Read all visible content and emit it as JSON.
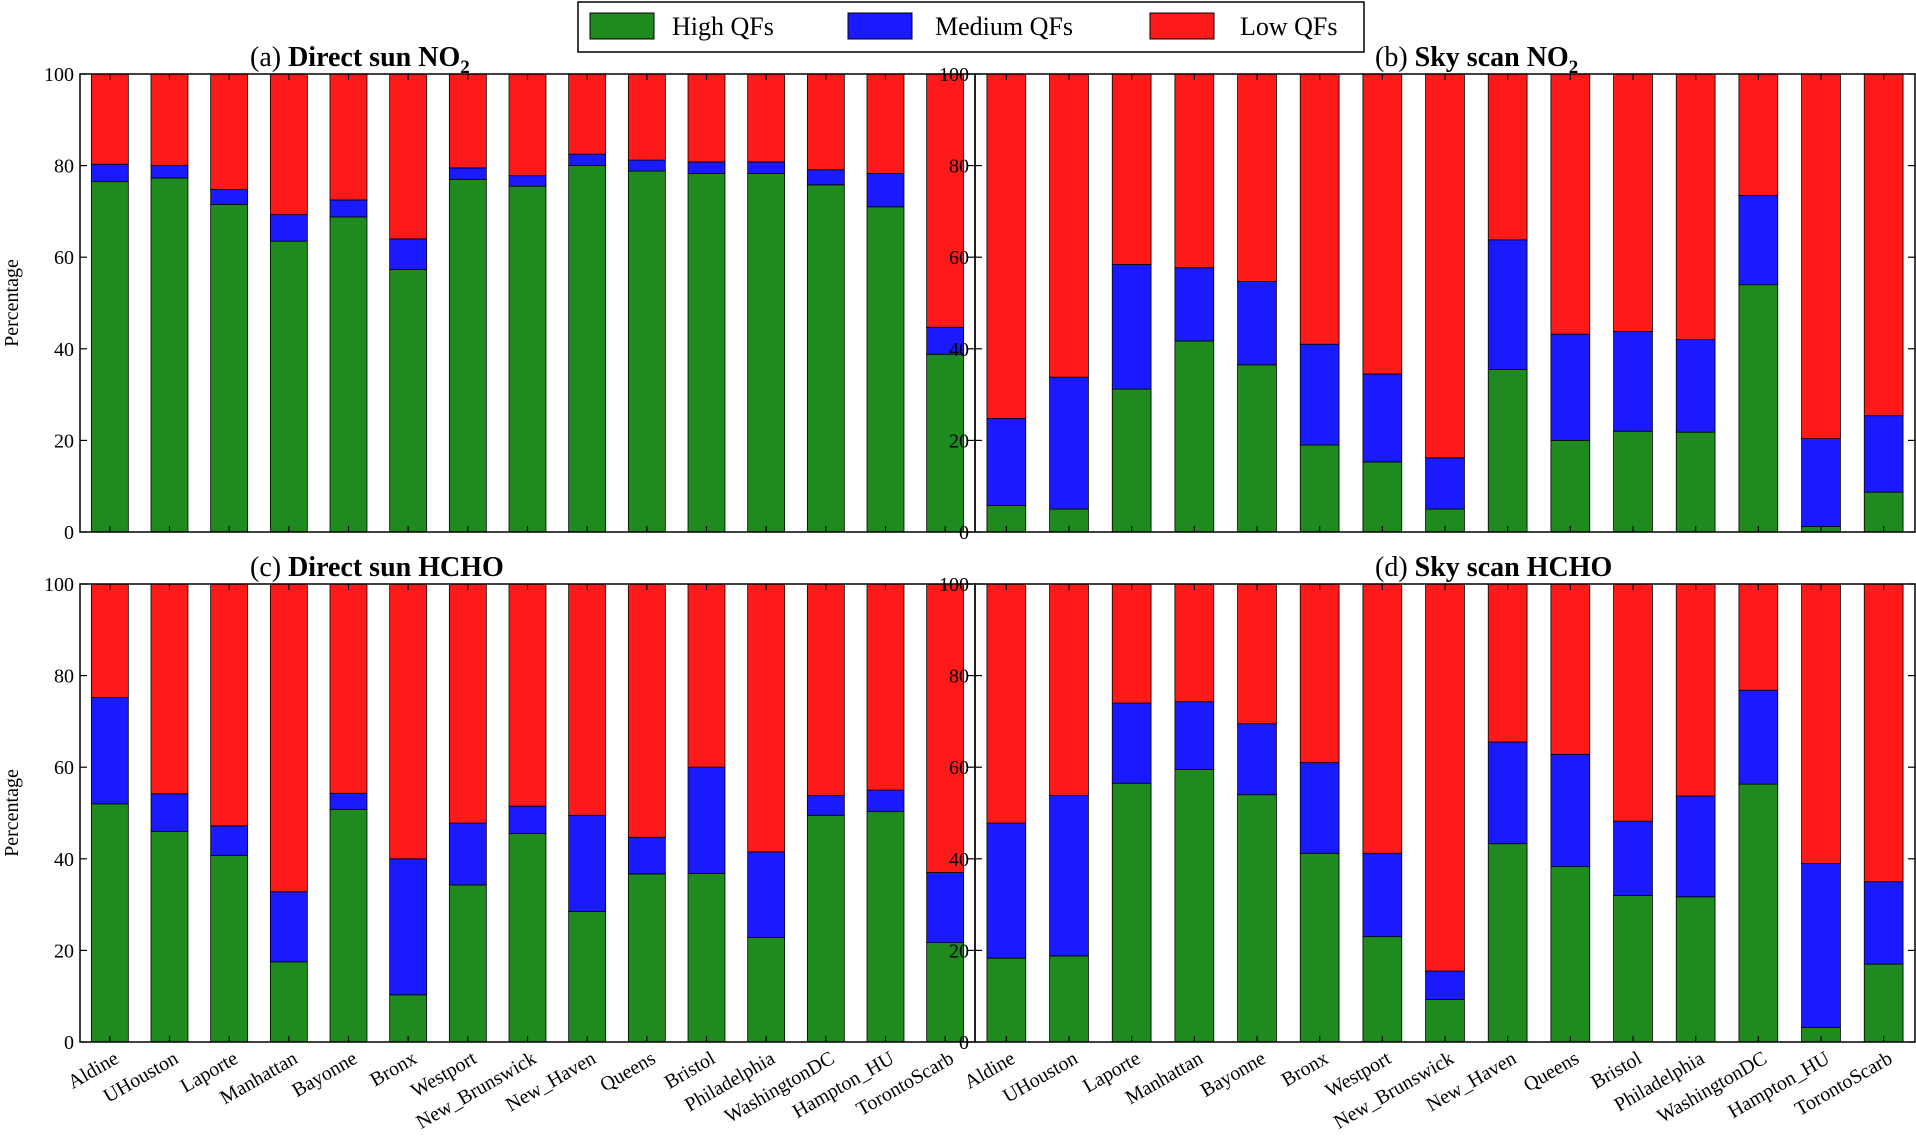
{
  "legend": {
    "position": "top-center",
    "items": [
      {
        "label": "High QFs",
        "color": "#1f8a1f"
      },
      {
        "label": "Medium QFs",
        "color": "#1a1aff"
      },
      {
        "label": "Low QFs",
        "color": "#ff1a1a"
      }
    ]
  },
  "categories": [
    "Aldine",
    "UHouston",
    "Laporte",
    "Manhattan",
    "Bayonne",
    "Bronx",
    "Westport",
    "New_Brunswick",
    "New_Haven",
    "Queens",
    "Bristol",
    "Philadelphia",
    "WashingtonDC",
    "Hampton_HU",
    "TorontoScarb"
  ],
  "chart_data": [
    {
      "type": "bar",
      "stacked": true,
      "title_prefix": "(a)",
      "title": "Direct sun NO",
      "title_sub": "2",
      "ylabel": "Percentage",
      "ylim": [
        0,
        100
      ],
      "yticks": [
        0,
        20,
        40,
        60,
        80,
        100
      ],
      "series": [
        {
          "name": "High QFs",
          "values": [
            76.5,
            77.3,
            71.5,
            63.5,
            68.8,
            57.3,
            77.0,
            75.5,
            80.0,
            78.8,
            78.3,
            78.3,
            75.8,
            71.0,
            38.8
          ]
        },
        {
          "name": "Medium QFs",
          "values": [
            3.8,
            2.7,
            3.3,
            5.8,
            3.7,
            6.7,
            2.5,
            2.3,
            2.5,
            2.4,
            2.5,
            2.5,
            3.3,
            7.3,
            5.9
          ]
        },
        {
          "name": "Low QFs",
          "values": [
            19.7,
            20.0,
            25.2,
            30.7,
            27.5,
            36.0,
            20.5,
            22.2,
            17.5,
            18.8,
            19.2,
            19.2,
            20.9,
            21.7,
            55.3
          ]
        }
      ]
    },
    {
      "type": "bar",
      "stacked": true,
      "title_prefix": "(b)",
      "title": "Sky scan NO",
      "title_sub": "2",
      "ylabel": "",
      "ylim": [
        0,
        100
      ],
      "yticks": [
        0,
        20,
        40,
        60,
        80,
        100
      ],
      "series": [
        {
          "name": "High QFs",
          "values": [
            5.8,
            5.0,
            31.2,
            41.7,
            36.5,
            19.0,
            15.3,
            5.0,
            35.5,
            20.0,
            22.0,
            21.8,
            54.0,
            1.2,
            8.7
          ]
        },
        {
          "name": "Medium QFs",
          "values": [
            19.0,
            28.8,
            27.2,
            16.0,
            18.2,
            22.0,
            19.2,
            11.2,
            28.3,
            23.2,
            21.8,
            20.2,
            19.5,
            19.2,
            16.7
          ]
        },
        {
          "name": "Low QFs",
          "values": [
            75.2,
            66.2,
            41.6,
            42.3,
            45.3,
            59.0,
            65.5,
            83.8,
            36.2,
            56.8,
            56.2,
            58.0,
            26.5,
            79.6,
            74.6
          ]
        }
      ]
    },
    {
      "type": "bar",
      "stacked": true,
      "title_prefix": "(c)",
      "title": "Direct sun HCHO",
      "title_sub": "",
      "ylabel": "Percentage",
      "ylim": [
        0,
        100
      ],
      "yticks": [
        0,
        20,
        40,
        60,
        80,
        100
      ],
      "series": [
        {
          "name": "High QFs",
          "values": [
            52.0,
            46.0,
            40.7,
            17.5,
            50.8,
            10.3,
            34.3,
            45.5,
            28.5,
            36.7,
            36.8,
            22.8,
            49.5,
            50.3,
            21.7
          ]
        },
        {
          "name": "Medium QFs",
          "values": [
            23.2,
            8.2,
            6.5,
            15.3,
            3.5,
            29.7,
            13.5,
            6.0,
            21.0,
            8.0,
            23.2,
            18.7,
            4.3,
            4.7,
            15.3
          ]
        },
        {
          "name": "Low QFs",
          "values": [
            24.8,
            45.8,
            52.8,
            67.2,
            45.7,
            60.0,
            52.2,
            48.5,
            50.5,
            55.3,
            40.0,
            58.5,
            46.2,
            45.0,
            63.0
          ]
        }
      ]
    },
    {
      "type": "bar",
      "stacked": true,
      "title_prefix": "(d)",
      "title": "Sky scan HCHO",
      "title_sub": "",
      "ylabel": "",
      "ylim": [
        0,
        100
      ],
      "yticks": [
        0,
        20,
        40,
        60,
        80,
        100
      ],
      "series": [
        {
          "name": "High QFs",
          "values": [
            18.3,
            18.8,
            56.5,
            59.5,
            54.0,
            41.2,
            23.0,
            9.3,
            43.3,
            38.3,
            32.0,
            31.7,
            56.3,
            3.2,
            17.0
          ]
        },
        {
          "name": "Medium QFs",
          "values": [
            29.5,
            35.0,
            17.5,
            14.8,
            15.5,
            19.8,
            18.2,
            6.2,
            22.2,
            24.5,
            16.2,
            22.0,
            20.5,
            35.8,
            18.0
          ]
        },
        {
          "name": "Low QFs",
          "values": [
            52.2,
            46.2,
            26.0,
            25.7,
            30.5,
            39.0,
            58.8,
            84.5,
            34.5,
            37.2,
            51.8,
            46.3,
            23.2,
            61.0,
            65.0
          ]
        }
      ]
    }
  ]
}
